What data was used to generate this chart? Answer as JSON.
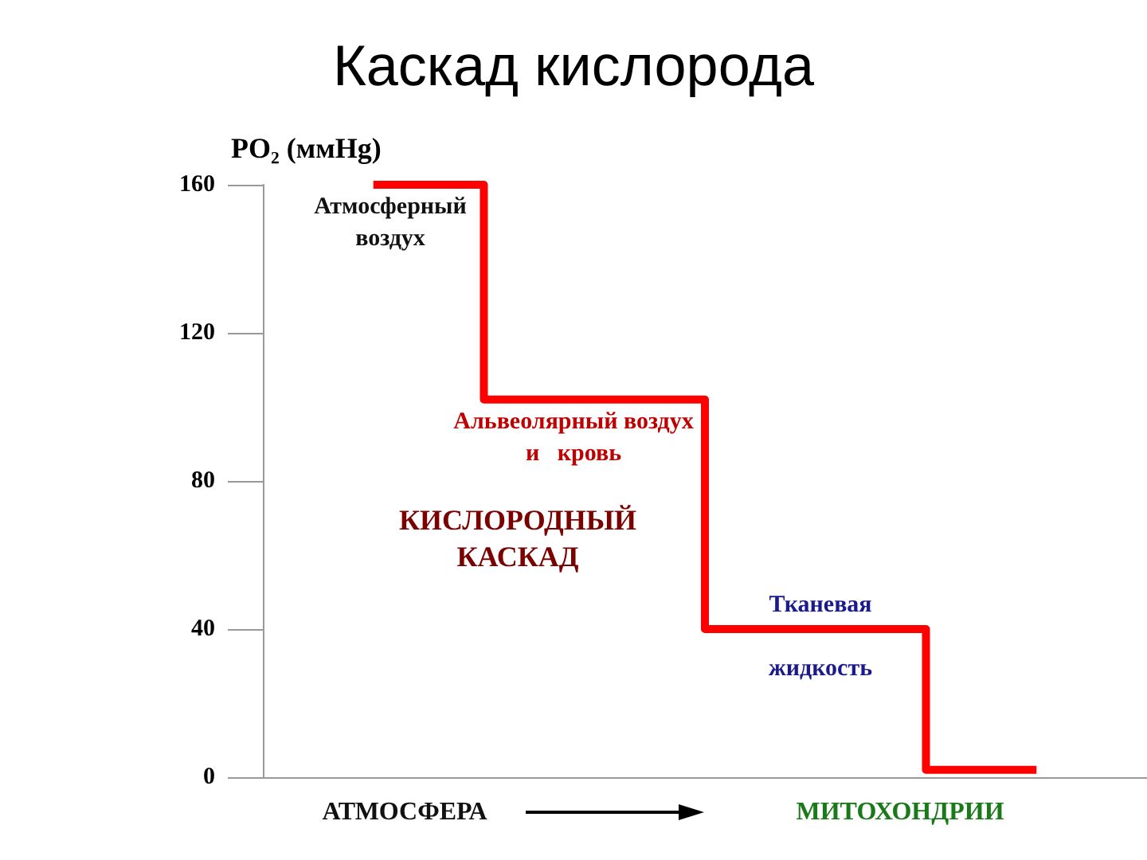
{
  "chart_data": {
    "type": "step",
    "title": "Каскад кислорода",
    "ylabel": "PO₂ (ммHg)",
    "categories": [
      null,
      null,
      null,
      null
    ],
    "values": [
      160,
      102,
      40,
      2
    ],
    "color": "#ff0000",
    "ylim": [
      0,
      160
    ],
    "yticks": [
      0,
      40,
      80,
      120,
      160
    ],
    "grid": false,
    "annotations": [
      "Атмосферный\nвоздух",
      "Альвеолярный воздух\nи   кровь",
      "Тканевая\n\nжидкость",
      "КИСЛОРОДНЫЙ\nКАСКАД",
      "АТМОСФЕРА",
      "МИТОХОНДРИИ"
    ]
  }
}
